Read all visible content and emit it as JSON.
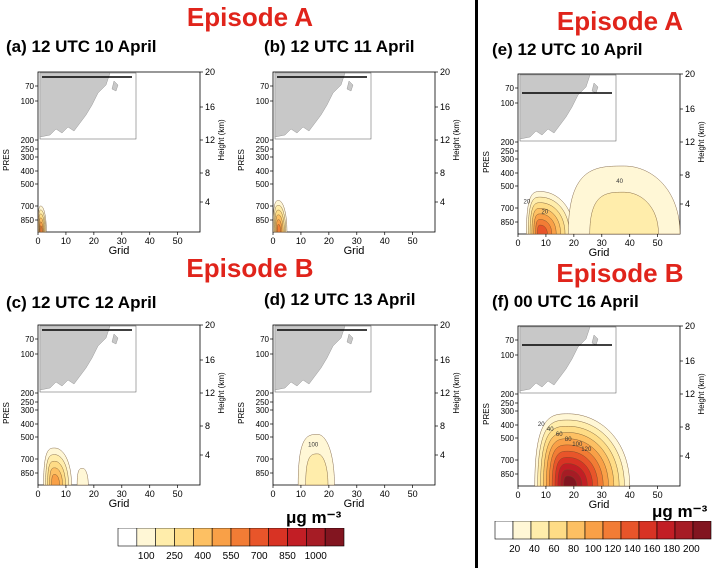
{
  "header": {
    "left_episode_a": "Episode A",
    "left_episode_b": "Episode B",
    "right_episode_a": "Episode A",
    "right_episode_b": "Episode B"
  },
  "colors": {
    "episode_label": "#e0241b",
    "map_land": "#c8c8c8",
    "transect_line": "#000000"
  },
  "colorbars": [
    {
      "unit": "μg m⁻³",
      "labels": [
        "100",
        "250",
        "400",
        "550",
        "700",
        "850",
        "1000"
      ],
      "colors": [
        "#ffffff",
        "#fff7d6",
        "#ffedab",
        "#fedc86",
        "#fdc063",
        "#f9a047",
        "#f27c35",
        "#e8552a",
        "#d83324",
        "#c21e25",
        "#a61c25",
        "#821520"
      ]
    },
    {
      "unit": "μg m⁻³",
      "labels": [
        "20",
        "40",
        "60",
        "80",
        "100",
        "120",
        "140",
        "160",
        "180",
        "200"
      ],
      "colors": [
        "#ffffff",
        "#fff7d6",
        "#ffedab",
        "#fedc86",
        "#fdc063",
        "#f9a047",
        "#f27c35",
        "#e8552a",
        "#d83324",
        "#c21e25",
        "#a61c25",
        "#821520"
      ]
    }
  ],
  "chart_data": [
    {
      "type": "heatmap",
      "title": "(a) 12 UTC 10 April",
      "xlabel": "Grid",
      "ylabel": "PRES",
      "y2label": "Height (km)",
      "xlim": [
        0,
        58
      ],
      "xticks": [
        "0",
        "10",
        "20",
        "30",
        "40",
        "50"
      ],
      "pres_ticks": [
        "70",
        "100",
        "200",
        "250",
        "300",
        "400",
        "500",
        "700",
        "850"
      ],
      "height_ticks": [
        "20",
        "16",
        "12",
        "8",
        "4"
      ],
      "map_line": "upper",
      "plumes": [
        {
          "grid_start": 0,
          "grid_end": 3,
          "pres_top": 700,
          "peak_grid": 1,
          "max_level": 6
        }
      ]
    },
    {
      "type": "heatmap",
      "title": "(b) 12 UTC 11 April",
      "xlabel": "Grid",
      "ylabel": "PRES",
      "y2label": "Height (km)",
      "xlim": [
        0,
        58
      ],
      "xticks": [
        "0",
        "10",
        "20",
        "30",
        "40",
        "50"
      ],
      "pres_ticks": [
        "70",
        "100",
        "200",
        "250",
        "300",
        "400",
        "500",
        "700",
        "850"
      ],
      "height_ticks": [
        "20",
        "16",
        "12",
        "8",
        "4"
      ],
      "map_line": "upper",
      "plumes": [
        {
          "grid_start": 0,
          "grid_end": 5,
          "pres_top": 650,
          "peak_grid": 2,
          "max_level": 6
        }
      ]
    },
    {
      "type": "heatmap",
      "title": "(c) 12 UTC 12 April",
      "xlabel": "Grid",
      "ylabel": "PRES",
      "y2label": "Height (km)",
      "xlim": [
        0,
        58
      ],
      "xticks": [
        "0",
        "10",
        "20",
        "30",
        "40",
        "50"
      ],
      "pres_ticks": [
        "70",
        "100",
        "200",
        "250",
        "300",
        "400",
        "500",
        "700",
        "850"
      ],
      "height_ticks": [
        "20",
        "16",
        "12",
        "8",
        "4"
      ],
      "map_line": "upper",
      "plumes": [
        {
          "grid_start": 2,
          "grid_end": 12,
          "pres_top": 600,
          "peak_grid": 6,
          "max_level": 5
        },
        {
          "grid_start": 14,
          "grid_end": 18,
          "pres_top": 800,
          "peak_grid": 16,
          "max_level": 1
        }
      ]
    },
    {
      "type": "heatmap",
      "title": "(d) 12 UTC 13 April",
      "xlabel": "Grid",
      "ylabel": "PRES",
      "y2label": "Height (km)",
      "xlim": [
        0,
        58
      ],
      "xticks": [
        "0",
        "10",
        "20",
        "30",
        "40",
        "50"
      ],
      "pres_ticks": [
        "70",
        "100",
        "200",
        "250",
        "300",
        "400",
        "500",
        "700",
        "850"
      ],
      "height_ticks": [
        "20",
        "16",
        "12",
        "8",
        "4"
      ],
      "map_line": "upper",
      "contour_labels": [
        "100"
      ],
      "plumes": [
        {
          "grid_start": 9,
          "grid_end": 22,
          "pres_top": 480,
          "peak_grid": 16,
          "max_level": 2
        }
      ]
    },
    {
      "type": "heatmap",
      "title": "(e) 12 UTC 10 April",
      "xlabel": "Grid",
      "ylabel": "PRES",
      "y2label": "Height (km)",
      "xlim": [
        0,
        58
      ],
      "xticks": [
        "0",
        "10",
        "20",
        "30",
        "40",
        "50"
      ],
      "pres_ticks": [
        "70",
        "100",
        "200",
        "250",
        "300",
        "400",
        "500",
        "700",
        "850"
      ],
      "height_ticks": [
        "20",
        "16",
        "12",
        "8",
        "4"
      ],
      "map_line": "middle",
      "contour_labels": [
        "20",
        "40",
        "20"
      ],
      "plumes": [
        {
          "grid_start": 3,
          "grid_end": 20,
          "pres_top": 550,
          "peak_grid": 8,
          "max_level": 7
        },
        {
          "grid_start": 18,
          "grid_end": 58,
          "pres_top": 350,
          "peak_grid": 38,
          "max_level": 2
        }
      ]
    },
    {
      "type": "heatmap",
      "title": "(f) 00 UTC 16 April",
      "xlabel": "Grid",
      "ylabel": "PRES",
      "y2label": "Height (km)",
      "xlim": [
        0,
        58
      ],
      "xticks": [
        "0",
        "10",
        "20",
        "30",
        "40",
        "50"
      ],
      "pres_ticks": [
        "70",
        "100",
        "200",
        "250",
        "300",
        "400",
        "500",
        "700",
        "850"
      ],
      "height_ticks": [
        "20",
        "16",
        "12",
        "8",
        "4"
      ],
      "map_line": "middle",
      "contour_labels": [
        "20",
        "40",
        "60",
        "80",
        "100",
        "120"
      ],
      "plumes": [
        {
          "grid_start": 6,
          "grid_end": 40,
          "pres_top": 320,
          "peak_grid": 18,
          "max_level": 11
        }
      ]
    }
  ]
}
